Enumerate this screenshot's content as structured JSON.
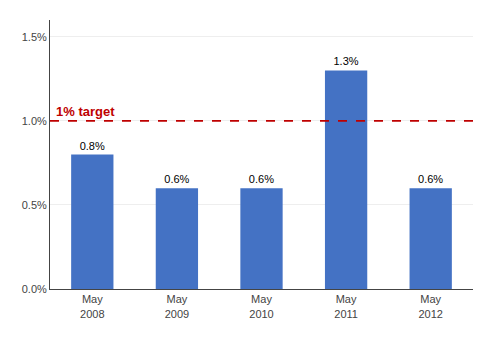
{
  "chart_data": {
    "type": "bar",
    "categories": [
      "May\n2008",
      "May\n2009",
      "May\n2010",
      "May\n2011",
      "May\n2012"
    ],
    "values": [
      0.008,
      0.006,
      0.006,
      0.013,
      0.006
    ],
    "value_labels": [
      "0.8%",
      "0.6%",
      "0.6%",
      "1.3%",
      "0.6%"
    ],
    "data_labels": true,
    "color": "#4472C4",
    "ylim": [
      0,
      0.016
    ],
    "yticks": [
      {
        "value": 0.0,
        "label": "0.0%"
      },
      {
        "value": 0.005,
        "label": "0.5%"
      },
      {
        "value": 0.01,
        "label": "1.0%"
      },
      {
        "value": 0.015,
        "label": "1.5%"
      }
    ],
    "grid": true,
    "target_line": {
      "y": 0.01,
      "label": "1% target",
      "color": "#BE0000",
      "line_style": "dashed"
    }
  }
}
